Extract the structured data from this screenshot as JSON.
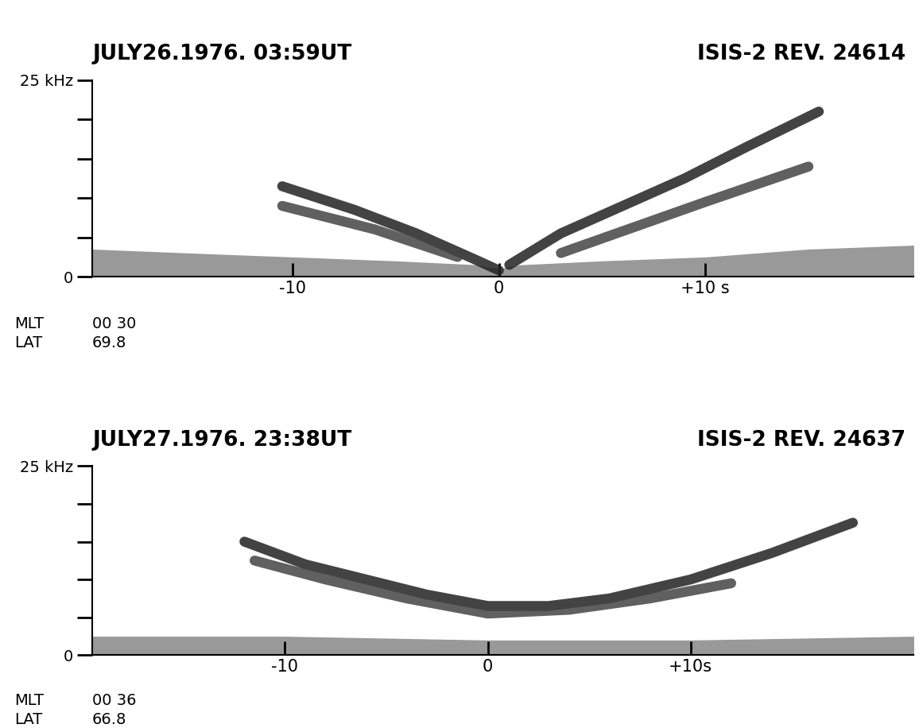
{
  "chart_data": [
    {
      "type": "spectrogram",
      "title": "JULY26.1976. 03:59UT",
      "subtitle": "ISIS-2 REV. 24614",
      "mlt_label": "MLT",
      "mlt": "00 30",
      "lat_label": "LAT",
      "lat": "69.8",
      "xlim": [
        -19.7,
        20.1
      ],
      "xticks": [
        -10,
        0,
        {
          "value": 10,
          "label": "+10 s"
        }
      ],
      "ylim": [
        0,
        25
      ],
      "yticks": [
        0,
        {
          "value": 25,
          "label": "25 kHz"
        }
      ],
      "ytick_marks": [
        5,
        10,
        15,
        20
      ],
      "series": [
        {
          "type": "area",
          "color": "#555555",
          "x": [
            -19.7,
            -15,
            -10,
            -5,
            -1,
            0,
            1,
            5,
            10,
            15,
            20.1
          ],
          "values": [
            3.5,
            3.0,
            2.5,
            2.0,
            1.5,
            1.0,
            1.5,
            2.0,
            2.5,
            3.5,
            4.0
          ]
        },
        {
          "type": "line",
          "color": "#222222",
          "x": [
            -10.5,
            -7,
            -4,
            -1,
            0
          ],
          "values": [
            11.5,
            8.5,
            5.5,
            2.0,
            0.8
          ]
        },
        {
          "type": "line",
          "color": "#444444",
          "x": [
            -10.5,
            -6,
            -2
          ],
          "values": [
            9.0,
            6.0,
            2.5
          ]
        },
        {
          "type": "line",
          "color": "#222222",
          "x": [
            0.5,
            3,
            6,
            9,
            12,
            15.5
          ],
          "values": [
            1.5,
            5.5,
            9.0,
            12.5,
            16.5,
            21.0
          ]
        },
        {
          "type": "line",
          "color": "#444444",
          "x": [
            3,
            10,
            15
          ],
          "values": [
            3.0,
            9.5,
            14.0
          ]
        }
      ]
    },
    {
      "type": "spectrogram",
      "title": "JULY27.1976. 23:38UT",
      "subtitle": "ISIS-2 REV. 24637",
      "mlt_label": "MLT",
      "mlt": "00 36",
      "lat_label": "LAT",
      "lat": "66.8",
      "xlim": [
        -19.5,
        21.0
      ],
      "xticks": [
        -10,
        0,
        {
          "value": 10,
          "label": "+10s"
        }
      ],
      "ylim": [
        0,
        25
      ],
      "yticks": [
        0,
        {
          "value": 25,
          "label": "25 kHz"
        }
      ],
      "ytick_marks": [
        5,
        10,
        15,
        20
      ],
      "series": [
        {
          "type": "area",
          "color": "#555555",
          "x": [
            -19.5,
            -10,
            0,
            10,
            21.0
          ],
          "values": [
            2.5,
            2.5,
            2.0,
            2.0,
            2.5
          ]
        },
        {
          "type": "line",
          "color": "#222222",
          "x": [
            -12,
            -9,
            -6,
            -3,
            0,
            3,
            6,
            10,
            14,
            18
          ],
          "values": [
            15.0,
            12.0,
            10.0,
            8.0,
            6.5,
            6.5,
            7.5,
            10.0,
            13.5,
            17.5
          ]
        },
        {
          "type": "line",
          "color": "#444444",
          "x": [
            -11.5,
            -8,
            -4,
            0,
            4,
            8,
            12
          ],
          "values": [
            12.5,
            10.0,
            7.5,
            5.5,
            6.0,
            7.5,
            9.5
          ]
        }
      ]
    }
  ]
}
